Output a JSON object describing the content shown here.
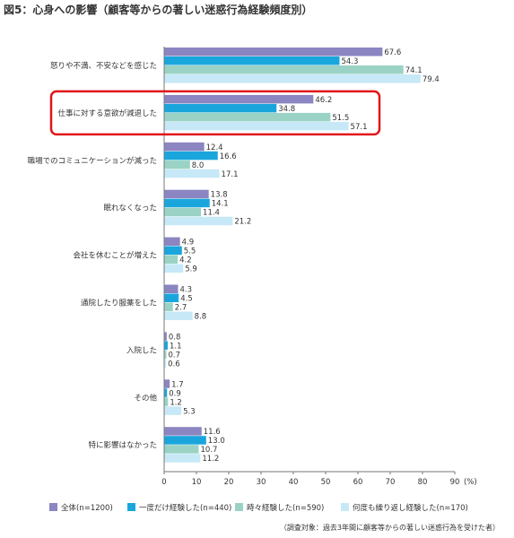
{
  "chart_data": {
    "type": "bar",
    "orientation": "horizontal",
    "title": "図5：心身への影響（顧客等からの著しい迷惑行為経験頻度別）",
    "categories": [
      "怒りや不満、不安などを感じた",
      "仕事に対する意欲が減退した",
      "職場でのコミュニケーションが減った",
      "眠れなくなった",
      "会社を休むことが増えた",
      "通院したり服薬をした",
      "入院した",
      "その他",
      "特に影響はなかった"
    ],
    "series": [
      {
        "name": "全体(n=1200)",
        "color": "#8b85c1",
        "values": [
          67.6,
          46.2,
          12.4,
          13.8,
          4.9,
          4.3,
          0.8,
          1.7,
          11.6
        ]
      },
      {
        "name": "一度だけ経験した(n=440)",
        "color": "#1aa6dd",
        "values": [
          54.3,
          34.8,
          16.6,
          14.1,
          5.5,
          4.5,
          1.1,
          0.9,
          13.0
        ]
      },
      {
        "name": "時々経験した(n=590)",
        "color": "#9ad3c5",
        "values": [
          74.1,
          51.5,
          8.0,
          11.4,
          4.2,
          2.7,
          0.7,
          1.2,
          10.7
        ]
      },
      {
        "name": "何度も繰り返し経験した(n=170)",
        "color": "#c7e9f7",
        "values": [
          79.4,
          57.1,
          17.1,
          21.2,
          5.9,
          8.8,
          0.6,
          5.3,
          11.2
        ]
      }
    ],
    "value_labels": [
      [
        "67.6",
        "46.2",
        "12.4",
        "13.8",
        "4.9",
        "4.3",
        "0.8",
        "1.7",
        "11.6"
      ],
      [
        "54.3",
        "34.8",
        "16.6",
        "14.1",
        "5.5",
        "4.5",
        "1.1",
        "0.9",
        "13.0"
      ],
      [
        "74.1",
        "51.5",
        "8.0",
        "11.4",
        "4.2",
        "2.7",
        "0.7",
        "1.2",
        "10.7"
      ],
      [
        "79.4",
        "57.1",
        "17.1",
        "21.2",
        "5.9",
        "8.8",
        "0.6",
        "5.3",
        "11.2"
      ]
    ],
    "xlim": [
      0,
      90
    ],
    "xticks": [
      "0",
      "10",
      "20",
      "30",
      "40",
      "50",
      "60",
      "70",
      "80",
      "90"
    ],
    "xunit": "(%)",
    "highlighted_category": "仕事に対する意欲が減退した",
    "highlight_color": "#e0161b",
    "legend_position": "bottom",
    "grid": false,
    "footnote": "（調査対象：過去3年間に顧客等からの著しい迷惑行為を受けた者）"
  }
}
